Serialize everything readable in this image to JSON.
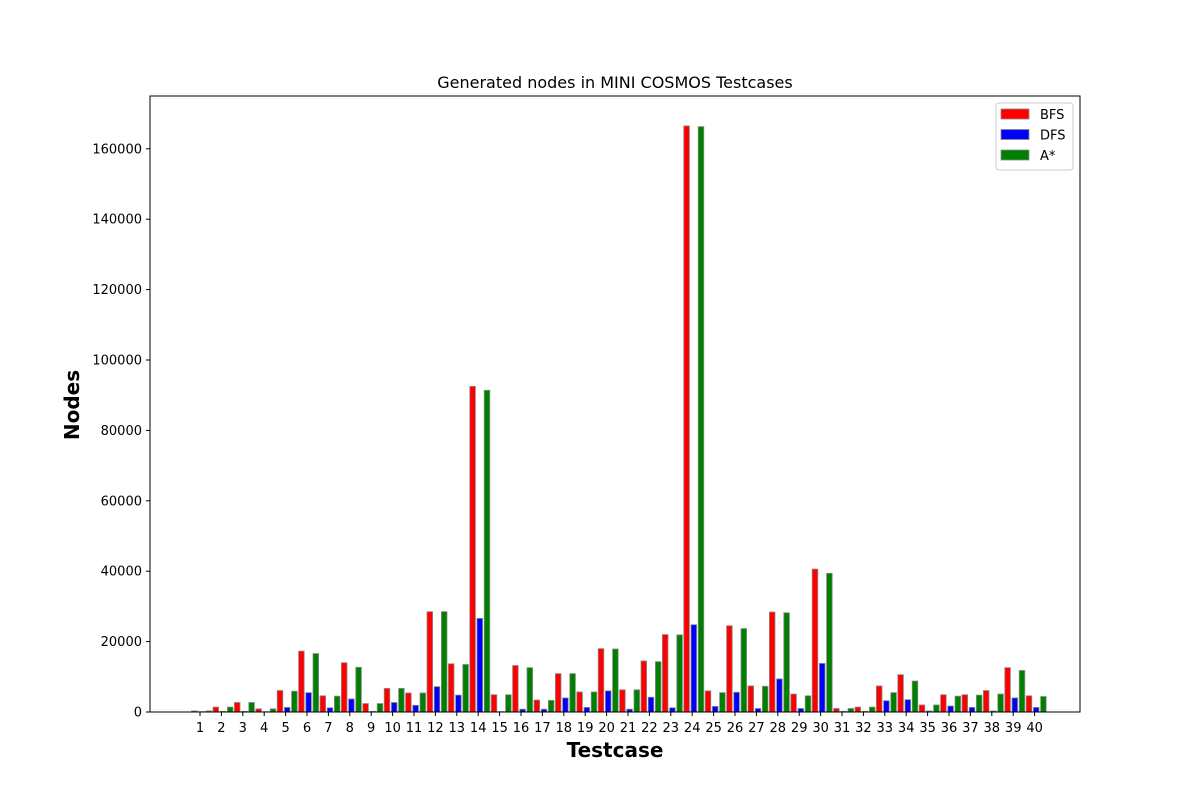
{
  "chart_data": {
    "type": "bar",
    "title": "Generated nodes in MINI COSMOS Testcases",
    "xlabel": "Testcase",
    "ylabel": "Nodes",
    "categories": [
      "1",
      "2",
      "3",
      "4",
      "5",
      "6",
      "7",
      "8",
      "9",
      "10",
      "11",
      "12",
      "13",
      "14",
      "15",
      "16",
      "17",
      "18",
      "19",
      "20",
      "21",
      "22",
      "23",
      "24",
      "25",
      "26",
      "27",
      "28",
      "29",
      "30",
      "31",
      "32",
      "33",
      "34",
      "35",
      "36",
      "37",
      "38",
      "39",
      "40"
    ],
    "series": [
      {
        "name": "BFS",
        "color": "#ff0000",
        "values": [
          300,
          1400,
          2700,
          900,
          6100,
          17300,
          4600,
          14000,
          2400,
          6700,
          5400,
          28500,
          13700,
          92500,
          4900,
          13200,
          3400,
          10900,
          5700,
          18000,
          6300,
          14500,
          22000,
          166500,
          6000,
          24500,
          7400,
          28400,
          5100,
          40600,
          1000,
          1400,
          7400,
          10600,
          2000,
          4900,
          4900,
          6100,
          12600,
          4600
        ]
      },
      {
        "name": "DFS",
        "color": "#0000ff",
        "values": [
          100,
          200,
          200,
          100,
          1300,
          5500,
          1200,
          3700,
          200,
          2700,
          1900,
          7200,
          4800,
          26600,
          100,
          800,
          800,
          4000,
          1300,
          6000,
          800,
          4200,
          1200,
          24800,
          1600,
          5600,
          1000,
          9400,
          1000,
          13800,
          200,
          200,
          3200,
          3500,
          300,
          1700,
          1300,
          300,
          4000,
          1300
        ]
      },
      {
        "name": "A*",
        "color": "#008000",
        "values": [
          300,
          1400,
          2700,
          900,
          5900,
          16600,
          4500,
          12700,
          2400,
          6700,
          5400,
          28500,
          13500,
          91400,
          4900,
          12600,
          3300,
          10900,
          5700,
          17900,
          6300,
          14300,
          21900,
          166300,
          5500,
          23700,
          7300,
          28200,
          4600,
          39400,
          1000,
          1400,
          5500,
          8800,
          2000,
          4500,
          4800,
          5100,
          11800,
          4400
        ]
      }
    ],
    "ylim": [
      0,
      175000
    ],
    "yticks": [
      0,
      20000,
      40000,
      60000,
      80000,
      100000,
      120000,
      140000,
      160000
    ],
    "grid": false,
    "legend_position": "top-right"
  }
}
